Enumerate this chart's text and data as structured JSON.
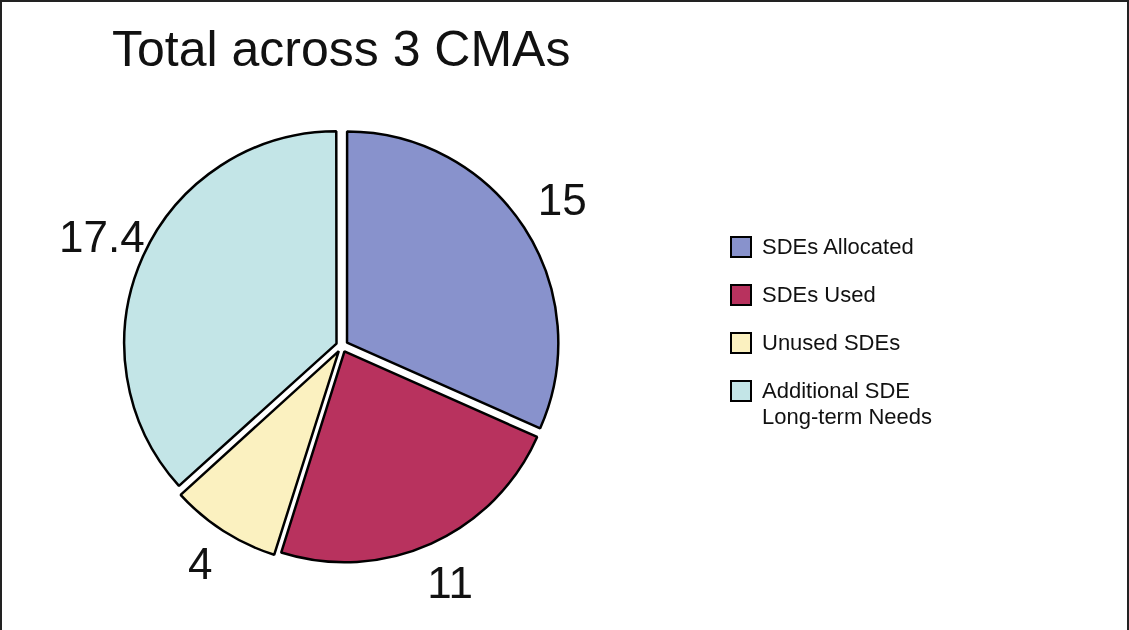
{
  "chart_data": {
    "type": "pie",
    "title": "Total across 3 CMAs",
    "categories": [
      "SDEs Allocated",
      "SDEs Used",
      "Unused SDEs",
      "Additional SDE Long-term Needs"
    ],
    "values": [
      15,
      11,
      4,
      17.4
    ],
    "colors": [
      "#8892cc",
      "#b8325e",
      "#fbf1c0",
      "#c3e5e7"
    ],
    "data_labels": true,
    "legend": "right"
  }
}
